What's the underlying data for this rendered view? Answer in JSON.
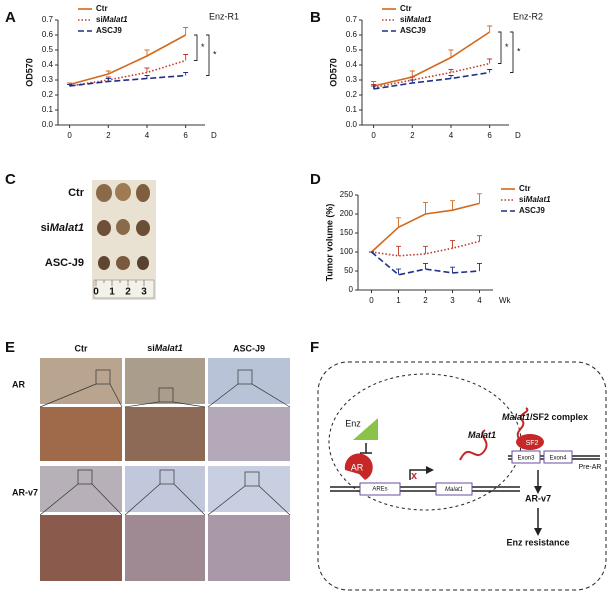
{
  "chart_data": [
    {
      "type": "line",
      "panel": "A",
      "subtitle": "Enz-R1",
      "xlabel": "D",
      "ylabel": "OD570",
      "x": [
        0,
        2,
        4,
        6
      ],
      "xlim": [
        -0.6,
        7
      ],
      "xticks": [
        0,
        2,
        4,
        6
      ],
      "ylim": [
        0,
        0.7
      ],
      "yticks": [
        {
          "value": 0,
          "label": "0.0"
        },
        0.1,
        0.2,
        0.3,
        0.4,
        0.5,
        0.6,
        0.7
      ],
      "legend": "upper left",
      "annotations": [
        "*",
        "*"
      ],
      "series": [
        {
          "name": "Ctr",
          "color": "#d2691e",
          "line_style": "solid",
          "values": [
            0.27,
            0.34,
            0.46,
            0.6
          ],
          "errors": [
            0.01,
            0.02,
            0.04,
            0.05
          ]
        },
        {
          "name": "siMalat1",
          "color": "#c0392b",
          "line_style": "dotted",
          "values": [
            0.26,
            0.3,
            0.35,
            0.43
          ],
          "errors": [
            0.01,
            0.02,
            0.03,
            0.04
          ]
        },
        {
          "name": "ASCJ9",
          "color": "#1f2f8a",
          "line_style": "dashed",
          "values": [
            0.26,
            0.29,
            0.31,
            0.33
          ],
          "errors": [
            0.01,
            0.02,
            0.02,
            0.02
          ]
        }
      ]
    },
    {
      "type": "line",
      "panel": "B",
      "subtitle": "Enz-R2",
      "xlabel": "D",
      "ylabel": "OD570",
      "x": [
        0,
        2,
        4,
        6
      ],
      "xlim": [
        -0.6,
        7
      ],
      "xticks": [
        0,
        2,
        4,
        6
      ],
      "ylim": [
        0,
        0.7
      ],
      "yticks": [
        {
          "value": 0,
          "label": "0.0"
        },
        0.1,
        0.2,
        0.3,
        0.4,
        0.5,
        0.6,
        0.7
      ],
      "legend": "upper left",
      "annotations": [
        "*",
        "*"
      ],
      "series": [
        {
          "name": "Ctr",
          "color": "#d2691e",
          "line_style": "solid",
          "values": [
            0.26,
            0.32,
            0.45,
            0.62
          ],
          "errors": [
            0.03,
            0.04,
            0.05,
            0.04
          ]
        },
        {
          "name": "siMalat1",
          "color": "#c0392b",
          "line_style": "dotted",
          "values": [
            0.25,
            0.3,
            0.35,
            0.41
          ],
          "errors": [
            0.02,
            0.02,
            0.02,
            0.03
          ]
        },
        {
          "name": "ASCJ9",
          "color": "#1f2f8a",
          "line_style": "dashed",
          "values": [
            0.24,
            0.28,
            0.31,
            0.35
          ],
          "errors": [
            0.02,
            0.02,
            0.02,
            0.02
          ]
        }
      ]
    },
    {
      "type": "line",
      "panel": "D",
      "xlabel": "Wk",
      "ylabel": "Tumor volume (%)",
      "x": [
        0,
        1,
        2,
        3,
        4
      ],
      "xlim": [
        -0.5,
        4.5
      ],
      "xticks": [
        0,
        1,
        2,
        3,
        4
      ],
      "ylim": [
        0,
        250
      ],
      "yticks": [
        0,
        50,
        100,
        150,
        200,
        250
      ],
      "legend": "right",
      "series": [
        {
          "name": "Ctr",
          "color": "#d2691e",
          "line_style": "solid",
          "values": [
            100,
            165,
            200,
            210,
            228
          ],
          "errors": [
            0,
            25,
            30,
            25,
            25
          ]
        },
        {
          "name": "siMalat1",
          "color": "#c0392b",
          "line_style": "dotted",
          "values": [
            100,
            90,
            95,
            110,
            128
          ],
          "errors": [
            0,
            25,
            20,
            20,
            15
          ]
        },
        {
          "name": "ASCJ9",
          "color": "#1f2f8a",
          "line_style": "dashed",
          "values": [
            100,
            40,
            55,
            45,
            50
          ],
          "errors": [
            0,
            15,
            15,
            15,
            20
          ]
        }
      ]
    }
  ],
  "panel_c": {
    "label": "C",
    "rows": [
      "Ctr",
      "siMalat1",
      "ASC-J9"
    ],
    "ruler": [
      "0",
      "1",
      "2",
      "3"
    ]
  },
  "panel_e": {
    "label": "E",
    "columns": [
      "Ctr",
      "siMalat1",
      "ASC-J9"
    ],
    "rows": [
      "AR",
      "AR-v7"
    ]
  },
  "panel_f": {
    "label": "F",
    "enz": "Enz",
    "ar": "AR",
    "ares": "AREs",
    "block": "x",
    "gene": "Malat1",
    "rna": "Malat1",
    "complex": "Malat1/SF2 complex",
    "sf2": "SF2",
    "exon3": "Exon3",
    "exon4": "Exon4",
    "pre_ar": "Pre-AR",
    "ar_v7": "AR-v7",
    "outcome": "Enz resistance"
  }
}
